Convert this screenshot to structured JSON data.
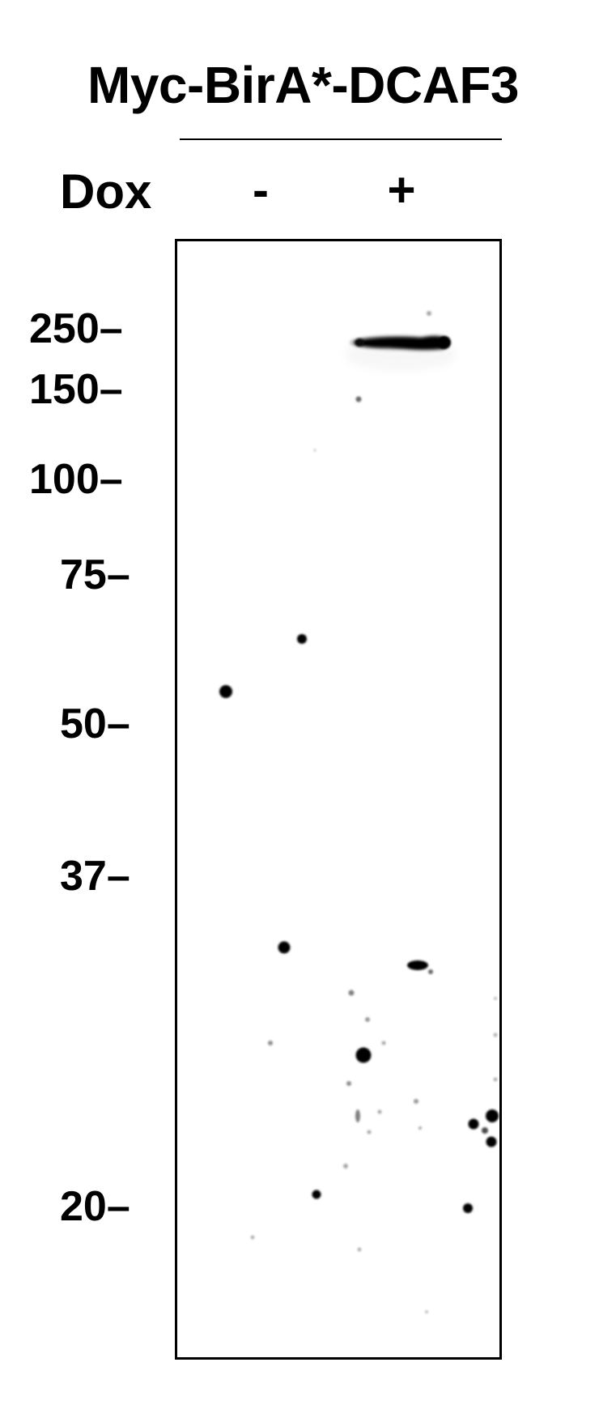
{
  "title": "Myc-BirA*-DCAF3",
  "treatment": {
    "label": "Dox",
    "lanes": [
      "-",
      "+"
    ]
  },
  "markers": [
    "250",
    "150",
    "100",
    "75",
    "50",
    "37",
    "20"
  ],
  "marker_dash": "–"
}
